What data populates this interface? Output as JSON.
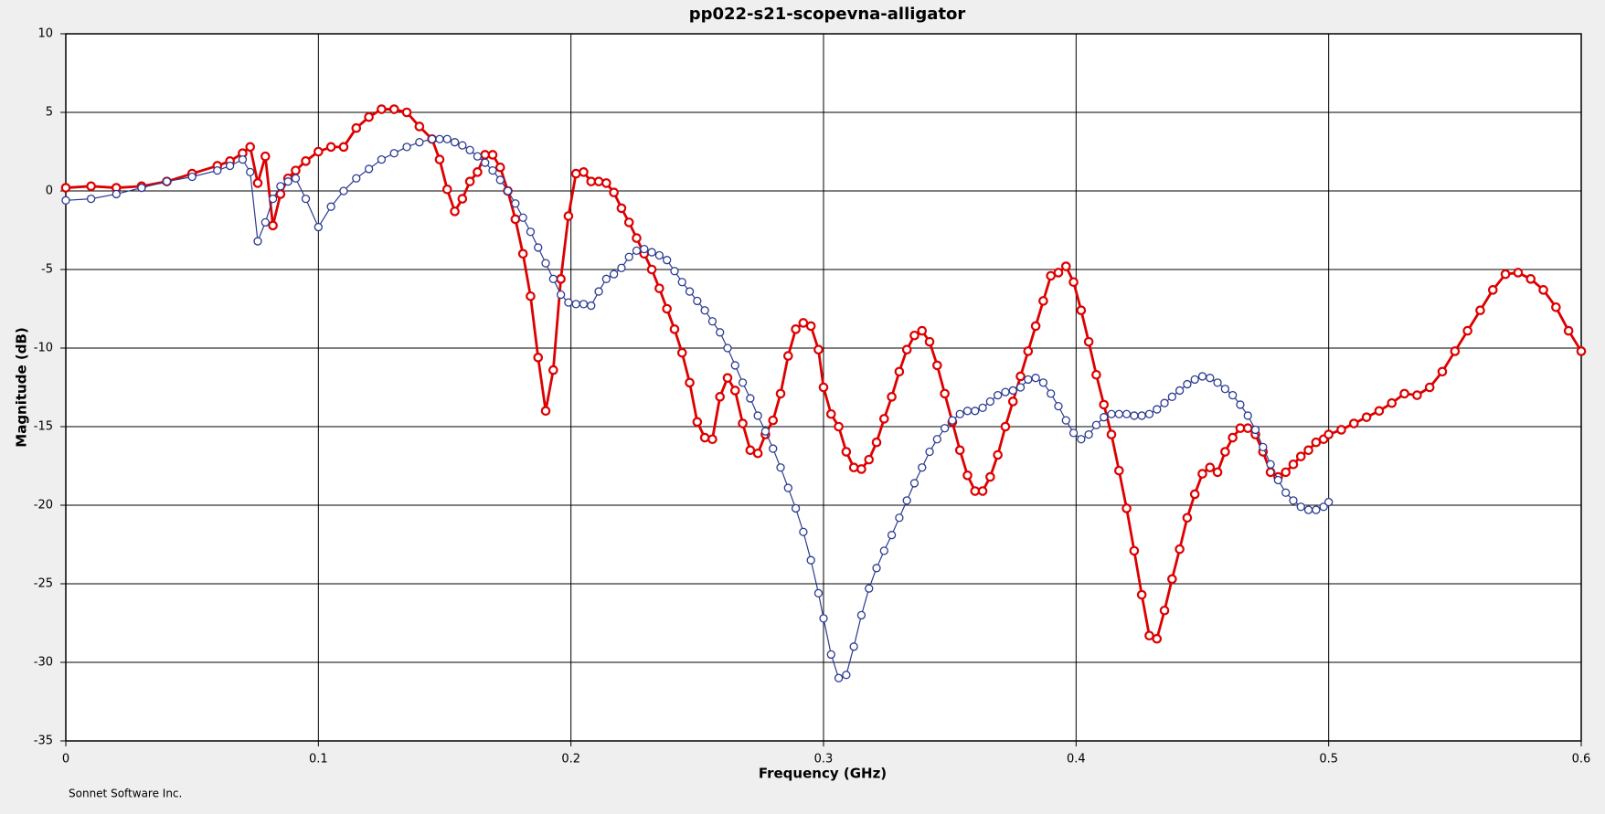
{
  "chart_data": {
    "type": "line",
    "title": "pp022-s21-scopevna-alligator",
    "x_label": "Frequency (GHz)",
    "y_label": "Magnitude (dB)",
    "credit": "Sonnet Software Inc.",
    "xlim": [
      0,
      0.6
    ],
    "xticks": [
      0,
      0.1,
      0.2,
      0.3,
      0.4,
      0.5,
      0.6
    ],
    "ylim": [
      -35,
      10
    ],
    "yticks": [
      -35,
      -30,
      -25,
      -20,
      -15,
      -10,
      -5,
      0,
      5,
      10
    ],
    "grid": true,
    "x": [
      0,
      0.01,
      0.02,
      0.03,
      0.04,
      0.05,
      0.06,
      0.065,
      0.07,
      0.073,
      0.076,
      0.079,
      0.082,
      0.085,
      0.088,
      0.091,
      0.095,
      0.1,
      0.105,
      0.11,
      0.115,
      0.12,
      0.125,
      0.13,
      0.135,
      0.14,
      0.145,
      0.148,
      0.151,
      0.154,
      0.157,
      0.16,
      0.163,
      0.166,
      0.169,
      0.172,
      0.175,
      0.178,
      0.181,
      0.184,
      0.187,
      0.19,
      0.193,
      0.196,
      0.199,
      0.202,
      0.205,
      0.208,
      0.211,
      0.214,
      0.217,
      0.22,
      0.223,
      0.226,
      0.229,
      0.232,
      0.235,
      0.238,
      0.241,
      0.244,
      0.247,
      0.25,
      0.253,
      0.256,
      0.259,
      0.262,
      0.265,
      0.268,
      0.271,
      0.274,
      0.277,
      0.28,
      0.283,
      0.286,
      0.289,
      0.292,
      0.295,
      0.298,
      0.3,
      0.303,
      0.306,
      0.309,
      0.312,
      0.315,
      0.318,
      0.321,
      0.324,
      0.327,
      0.33,
      0.333,
      0.336,
      0.339,
      0.342,
      0.345,
      0.348,
      0.351,
      0.354,
      0.357,
      0.36,
      0.363,
      0.366,
      0.369,
      0.372,
      0.375,
      0.378,
      0.381,
      0.384,
      0.387,
      0.39,
      0.393,
      0.396,
      0.399,
      0.402,
      0.405,
      0.408,
      0.411,
      0.414,
      0.417,
      0.42,
      0.423,
      0.426,
      0.429,
      0.432,
      0.435,
      0.438,
      0.441,
      0.444,
      0.447,
      0.45,
      0.453,
      0.456,
      0.459,
      0.462,
      0.465,
      0.468,
      0.471,
      0.474,
      0.477,
      0.48,
      0.483,
      0.486,
      0.489,
      0.492,
      0.495,
      0.498,
      0.5,
      0.505,
      0.51,
      0.515,
      0.52,
      0.525,
      0.53,
      0.535,
      0.54,
      0.545,
      0.55,
      0.555,
      0.56,
      0.565,
      0.57,
      0.575,
      0.58,
      0.585,
      0.59,
      0.595,
      0.6
    ],
    "series": [
      {
        "color": "#dd0000",
        "values": [
          0.2,
          0.3,
          0.2,
          0.3,
          0.6,
          1.1,
          1.6,
          1.9,
          2.4,
          2.8,
          0.5,
          2.2,
          -2.2,
          -0.2,
          0.8,
          1.3,
          1.9,
          2.5,
          2.8,
          2.8,
          4.0,
          4.7,
          5.2,
          5.2,
          5.0,
          4.1,
          3.3,
          2.0,
          0.1,
          -1.3,
          -0.5,
          0.6,
          1.2,
          2.3,
          2.3,
          1.5,
          0.0,
          -1.8,
          -4.0,
          -6.7,
          -10.6,
          -14.0,
          -11.4,
          -5.6,
          -1.6,
          1.1,
          1.2,
          0.6,
          0.6,
          0.5,
          -0.1,
          -1.1,
          -2.0,
          -3.0,
          -4.0,
          -5.0,
          -6.2,
          -7.5,
          -8.8,
          -10.3,
          -12.2,
          -14.7,
          -15.7,
          -15.8,
          -13.1,
          -11.9,
          -12.7,
          -14.8,
          -16.5,
          -16.7,
          -15.5,
          -14.6,
          -12.9,
          -10.5,
          -8.8,
          -8.4,
          -8.6,
          -10.1,
          -12.5,
          -14.2,
          -15.0,
          -16.6,
          -17.6,
          -17.7,
          -17.1,
          -16.0,
          -14.5,
          -13.1,
          -11.5,
          -10.1,
          -9.2,
          -8.9,
          -9.6,
          -11.1,
          -12.9,
          -14.7,
          -16.5,
          -18.1,
          -19.1,
          -19.1,
          -18.2,
          -16.8,
          -15.0,
          -13.4,
          -11.8,
          -10.2,
          -8.6,
          -7.0,
          -5.4,
          -5.2,
          -4.8,
          -5.8,
          -7.6,
          -9.6,
          -11.7,
          -13.6,
          -15.5,
          -17.8,
          -20.2,
          -22.9,
          -25.7,
          -28.3,
          -28.5,
          -26.7,
          -24.7,
          -22.8,
          -20.8,
          -19.3,
          -18.0,
          -17.6,
          -17.9,
          -16.6,
          -15.7,
          -15.1,
          -15.1,
          -15.5,
          -16.6,
          -17.9,
          -18.2,
          -17.9,
          -17.4,
          -16.9,
          -16.5,
          -16.0,
          -15.8,
          -15.5,
          -15.2,
          -14.8,
          -14.4,
          -14.0,
          -13.5,
          -12.9,
          -13.0,
          -12.5,
          -11.5,
          -10.2,
          -8.9,
          -7.6,
          -6.3,
          -5.3,
          -5.2,
          -5.6,
          -6.3,
          -7.4,
          -8.9,
          -10.2
        ]
      },
      {
        "color": "#2b3a91",
        "values": [
          -0.6,
          -0.5,
          -0.2,
          0.2,
          0.6,
          0.9,
          1.3,
          1.6,
          2.0,
          1.2,
          -3.2,
          -2.0,
          -0.5,
          0.3,
          0.6,
          0.8,
          -0.5,
          -2.3,
          -1.0,
          0.0,
          0.8,
          1.4,
          2.0,
          2.4,
          2.8,
          3.1,
          3.3,
          3.3,
          3.3,
          3.1,
          2.9,
          2.6,
          2.2,
          1.8,
          1.3,
          0.7,
          0.0,
          -0.8,
          -1.7,
          -2.6,
          -3.6,
          -4.6,
          -5.6,
          -6.6,
          -7.1,
          -7.2,
          -7.2,
          -7.3,
          -6.4,
          -5.6,
          -5.3,
          -4.9,
          -4.2,
          -3.8,
          -3.7,
          -3.9,
          -4.1,
          -4.4,
          -5.1,
          -5.8,
          -6.4,
          -7.0,
          -7.6,
          -8.3,
          -9.0,
          -10.0,
          -11.1,
          -12.2,
          -13.2,
          -14.3,
          -15.3,
          -16.4,
          -17.6,
          -18.9,
          -20.2,
          -21.7,
          -23.5,
          -25.6,
          -27.2,
          -29.5,
          -31.0,
          -30.8,
          -29.0,
          -27.0,
          -25.3,
          -24.0,
          -22.9,
          -21.9,
          -20.8,
          -19.7,
          -18.6,
          -17.6,
          -16.6,
          -15.8,
          -15.1,
          -14.6,
          -14.2,
          -14.0,
          -14.0,
          -13.8,
          -13.4,
          -13.0,
          -12.8,
          -12.7,
          -12.5,
          -12.0,
          -11.9,
          -12.2,
          -12.9,
          -13.7,
          -14.6,
          -15.4,
          -15.8,
          -15.5,
          -14.9,
          -14.4,
          -14.2,
          -14.2,
          -14.2,
          -14.3,
          -14.3,
          -14.2,
          -13.9,
          -13.5,
          -13.1,
          -12.7,
          -12.3,
          -12.0,
          -11.8,
          -11.9,
          -12.2,
          -12.6,
          -13.0,
          -13.6,
          -14.3,
          -15.2,
          -16.3,
          -17.4,
          -18.4,
          -19.2,
          -19.7,
          -20.1,
          -20.3,
          -20.3,
          -20.1,
          -19.8,
          null,
          null,
          null,
          null,
          null,
          null,
          null,
          null,
          null,
          null,
          null,
          null,
          null,
          null,
          null,
          null,
          null,
          null,
          null,
          null
        ]
      }
    ]
  }
}
